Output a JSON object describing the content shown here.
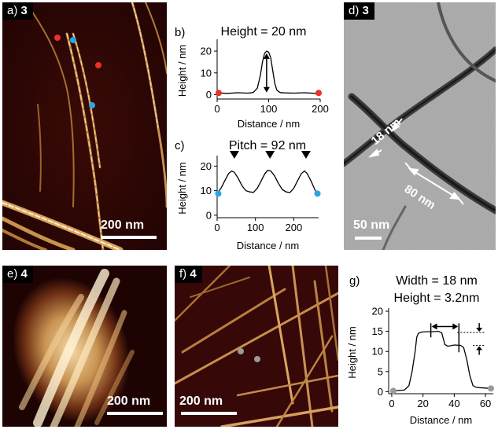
{
  "panels": {
    "a": {
      "tag": "a)",
      "compound": "3",
      "scale": "200 nm"
    },
    "b": {
      "tag": "b)",
      "title": "Height = 20 nm"
    },
    "c": {
      "tag": "c)",
      "title": "Pitch = 92 nm"
    },
    "d": {
      "tag": "d)",
      "compound": "3",
      "scale": "50 nm",
      "meas1": "18 nm",
      "meas2": "80 nm"
    },
    "e": {
      "tag": "e)",
      "compound": "4",
      "scale": "200 nm"
    },
    "f": {
      "tag": "f)",
      "compound": "4",
      "scale": "200 nm"
    },
    "g": {
      "tag": "g)",
      "title1": "Width = 18 nm",
      "title2": "Height = 3.2nm"
    }
  },
  "colors": {
    "red": "#e8322b",
    "blue": "#2aa6e0",
    "gray": "#9a9a9a",
    "afm_dark": "#2a0505",
    "tem_bg": "#a7a7a7"
  },
  "chart_data": [
    {
      "id": "b",
      "type": "line",
      "xlabel": "Distance / nm",
      "ylabel": "Height / nm",
      "xlim": [
        0,
        200
      ],
      "ylim": [
        -2,
        24
      ],
      "xticks": [
        0,
        100,
        200
      ],
      "yticks": [
        0,
        10,
        20
      ],
      "series": [
        {
          "x": [
            0,
            20,
            40,
            60,
            70,
            78,
            84,
            88,
            92,
            96,
            100,
            104,
            108,
            112,
            116,
            122,
            130,
            150,
            170,
            190,
            200
          ],
          "values": [
            0.8,
            0.6,
            0.9,
            0.7,
            1.0,
            3,
            9,
            15,
            19,
            20,
            19.5,
            17,
            11,
            5,
            2,
            1,
            0.8,
            0.7,
            0.9,
            0.6,
            0.8
          ]
        }
      ],
      "markers": [
        {
          "x": 3,
          "y": 0.8,
          "color": "red"
        },
        {
          "x": 197,
          "y": 0.8,
          "color": "red"
        }
      ]
    },
    {
      "id": "c",
      "type": "line",
      "xlabel": "Distance / nm",
      "ylabel": "Height / nm",
      "xlim": [
        0,
        265
      ],
      "ylim": [
        -1,
        23
      ],
      "xticks": [
        0,
        100,
        200
      ],
      "yticks": [
        0,
        10,
        20
      ],
      "series": [
        {
          "x": [
            0,
            10,
            20,
            30,
            38,
            45,
            55,
            65,
            75,
            85,
            95,
            105,
            115,
            125,
            132,
            140,
            150,
            160,
            170,
            180,
            190,
            200,
            210,
            220,
            228,
            235,
            245,
            255,
            260
          ],
          "values": [
            9,
            11,
            14,
            17,
            18,
            17.5,
            15,
            12,
            10,
            9.5,
            9.3,
            11,
            14,
            17,
            18.3,
            18,
            16,
            13,
            10.5,
            9.5,
            9.2,
            11,
            14,
            17,
            18,
            17,
            14,
            10.5,
            9
          ]
        }
      ],
      "peaks": [
        {
          "x": 45
        },
        {
          "x": 138
        },
        {
          "x": 232
        }
      ],
      "markers": [
        {
          "x": 3,
          "y": 8.8,
          "color": "blue"
        },
        {
          "x": 262,
          "y": 8.8,
          "color": "blue"
        }
      ]
    },
    {
      "id": "g",
      "type": "line",
      "xlabel": "Distance / nm",
      "ylabel": "Height / nm",
      "xlim": [
        -2,
        65
      ],
      "ylim": [
        -0.5,
        20
      ],
      "xticks": [
        0,
        20,
        40,
        60
      ],
      "yticks": [
        0,
        5,
        10,
        15,
        20
      ],
      "series": [
        {
          "x": [
            0,
            4,
            8,
            11,
            13,
            15,
            16,
            17,
            19,
            22,
            26,
            30,
            32,
            34,
            36,
            40,
            44,
            46,
            48,
            50,
            52,
            54,
            56,
            60,
            64
          ],
          "values": [
            0.2,
            0.3,
            0.4,
            1.5,
            5,
            10,
            13.5,
            14.5,
            14.8,
            14.9,
            14.9,
            15,
            14.6,
            11.7,
            11.3,
            11.6,
            11.5,
            11.0,
            8,
            4,
            1.5,
            1.1,
            1.0,
            0.9,
            0.8
          ]
        }
      ],
      "markers": [
        {
          "x": 1,
          "y": 0.2,
          "color": "gray"
        },
        {
          "x": 63.5,
          "y": 0.8,
          "color": "gray"
        }
      ]
    }
  ]
}
